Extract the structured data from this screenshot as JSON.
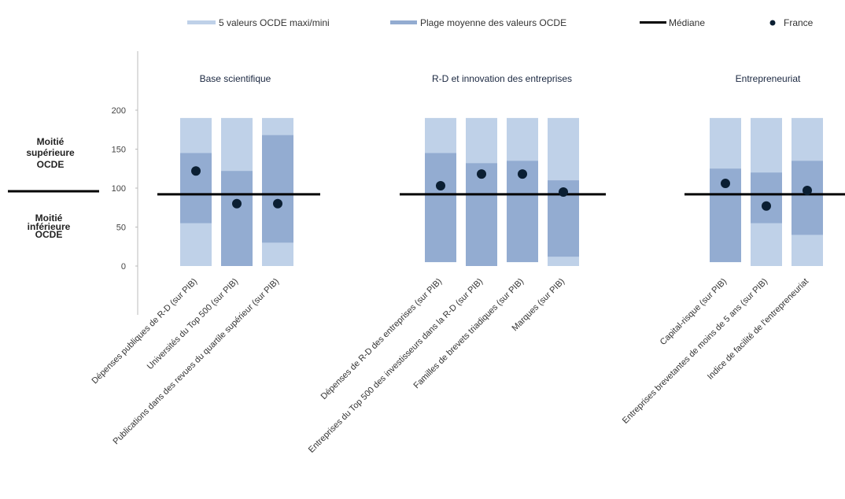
{
  "legend": {
    "range_label": "5 valeurs OCDE maxi/mini",
    "middle_label": "Plage moyenne des valeurs OCDE",
    "median_label": "Médiane",
    "france_label": "France"
  },
  "half_labels": {
    "upper": [
      "Moitié",
      "supérieure",
      "OCDE"
    ],
    "lower": [
      "Moitié",
      "inférieure",
      "OCDE"
    ]
  },
  "colors": {
    "range_bar": "#bfd1e8",
    "middle_band": "#93acd1",
    "median_line": "#000000",
    "france_dot": "#0b1f33"
  },
  "chart_data": {
    "type": "range-dot",
    "ylim": [
      -60,
      210
    ],
    "yticks": [
      0,
      50,
      100,
      150,
      200
    ],
    "median": 92,
    "groups": [
      {
        "title": "Base scientifique",
        "categories": [
          "Dépenses publiques de R-D (sur PIB)",
          "Universités du Top 500 (sur PIB)",
          "Publications dans des revues du quartile supérieur (sur PIB)"
        ],
        "range": [
          [
            0,
            190
          ],
          [
            0,
            190
          ],
          [
            0,
            190
          ]
        ],
        "middle": [
          [
            55,
            145
          ],
          [
            0,
            122
          ],
          [
            30,
            168
          ]
        ],
        "france": [
          122,
          80,
          80
        ]
      },
      {
        "title": "R-D et innovation des entreprises",
        "categories": [
          "Dépenses de R-D des entreprises (sur PIB)",
          "Entreprises du Top 500 des investisseurs dans la R-D (sur PIB)",
          "Familles de brevets triadiques (sur PIB)",
          "Marques (sur PIB)"
        ],
        "range": [
          [
            5,
            190
          ],
          [
            0,
            190
          ],
          [
            5,
            190
          ],
          [
            0,
            190
          ]
        ],
        "middle": [
          [
            5,
            145
          ],
          [
            0,
            132
          ],
          [
            5,
            135
          ],
          [
            12,
            110
          ]
        ],
        "france": [
          103,
          118,
          118,
          95
        ]
      },
      {
        "title": "Entrepreneuriat",
        "categories": [
          "Capital-risque (sur PIB)",
          "Entreprises brevetantes de moins de 5 ans (sur PIB)",
          "Indice de facilité de l'entrepreneuriat"
        ],
        "range": [
          [
            5,
            190
          ],
          [
            0,
            190
          ],
          [
            0,
            190
          ]
        ],
        "middle": [
          [
            5,
            125
          ],
          [
            55,
            120
          ],
          [
            40,
            135
          ]
        ],
        "france": [
          106,
          77,
          97
        ]
      }
    ]
  }
}
